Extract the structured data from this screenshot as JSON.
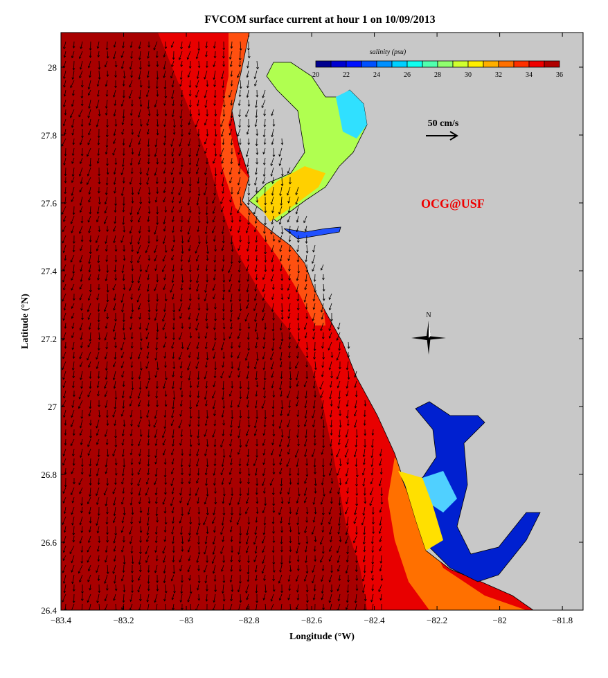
{
  "title": "FVCOM surface current at hour 1 on 10/09/2013",
  "xlabel": "Longitude (°W)",
  "ylabel": "Latitude (°N)",
  "x_ticks": [
    "−83.4",
    "−83.2",
    "−83",
    "−82.8",
    "−82.6",
    "−82.4",
    "−82.2",
    "−82",
    "−81.8"
  ],
  "x_tick_values": [
    -83.4,
    -83.2,
    -83.0,
    -82.8,
    -82.6,
    -82.4,
    -82.2,
    -82.0,
    -81.8
  ],
  "y_ticks": [
    "28",
    "27.8",
    "27.6",
    "27.4",
    "27.2",
    "27",
    "26.8",
    "26.6",
    "26.4"
  ],
  "y_tick_values": [
    28,
    27.8,
    27.6,
    27.4,
    27.2,
    27.0,
    26.8,
    26.6,
    26.4
  ],
  "xlim": [
    -83.4,
    -81.734
  ],
  "ylim": [
    26.4,
    28.102
  ],
  "colorbar": {
    "label": "salinity (psu)",
    "ticks": [
      "20",
      "22",
      "24",
      "26",
      "28",
      "30",
      "32",
      "34",
      "36"
    ],
    "colors": [
      "#00008f",
      "#0000d0",
      "#0010ff",
      "#0050ff",
      "#0090ff",
      "#00d0ff",
      "#10ffef",
      "#50ffaf",
      "#90ff6f",
      "#d0ff2f",
      "#ffef00",
      "#ffaf00",
      "#ff7000",
      "#ff3000",
      "#ef0000",
      "#af0000"
    ]
  },
  "scale_arrow": {
    "label": "50 cm/s"
  },
  "north_label": "N",
  "credit": "OCG@USF",
  "colors": {
    "land": "#c8c8c8",
    "offshore": "#a80000",
    "shelf": "#e80000",
    "coastal": "#ff5010",
    "credit": "#ee0000"
  }
}
